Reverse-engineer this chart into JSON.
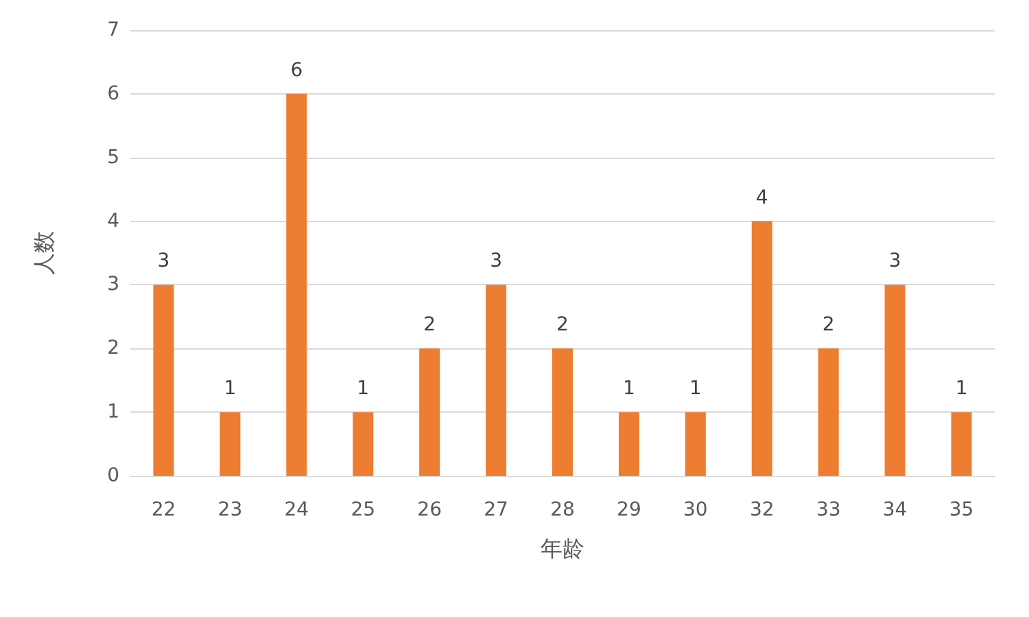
{
  "chart_data": {
    "type": "bar",
    "xlabel": "年龄",
    "ylabel": "人数",
    "categories": [
      "22",
      "23",
      "24",
      "25",
      "26",
      "27",
      "28",
      "29",
      "30",
      "32",
      "33",
      "34",
      "35"
    ],
    "values": [
      3,
      1,
      6,
      1,
      2,
      3,
      2,
      1,
      1,
      4,
      2,
      3,
      1
    ],
    "color": "#ed7d31",
    "ylim": [
      0,
      7
    ],
    "yticks": [
      0,
      1,
      2,
      3,
      4,
      5,
      6,
      7
    ],
    "grid": "y",
    "data_labels": true
  }
}
